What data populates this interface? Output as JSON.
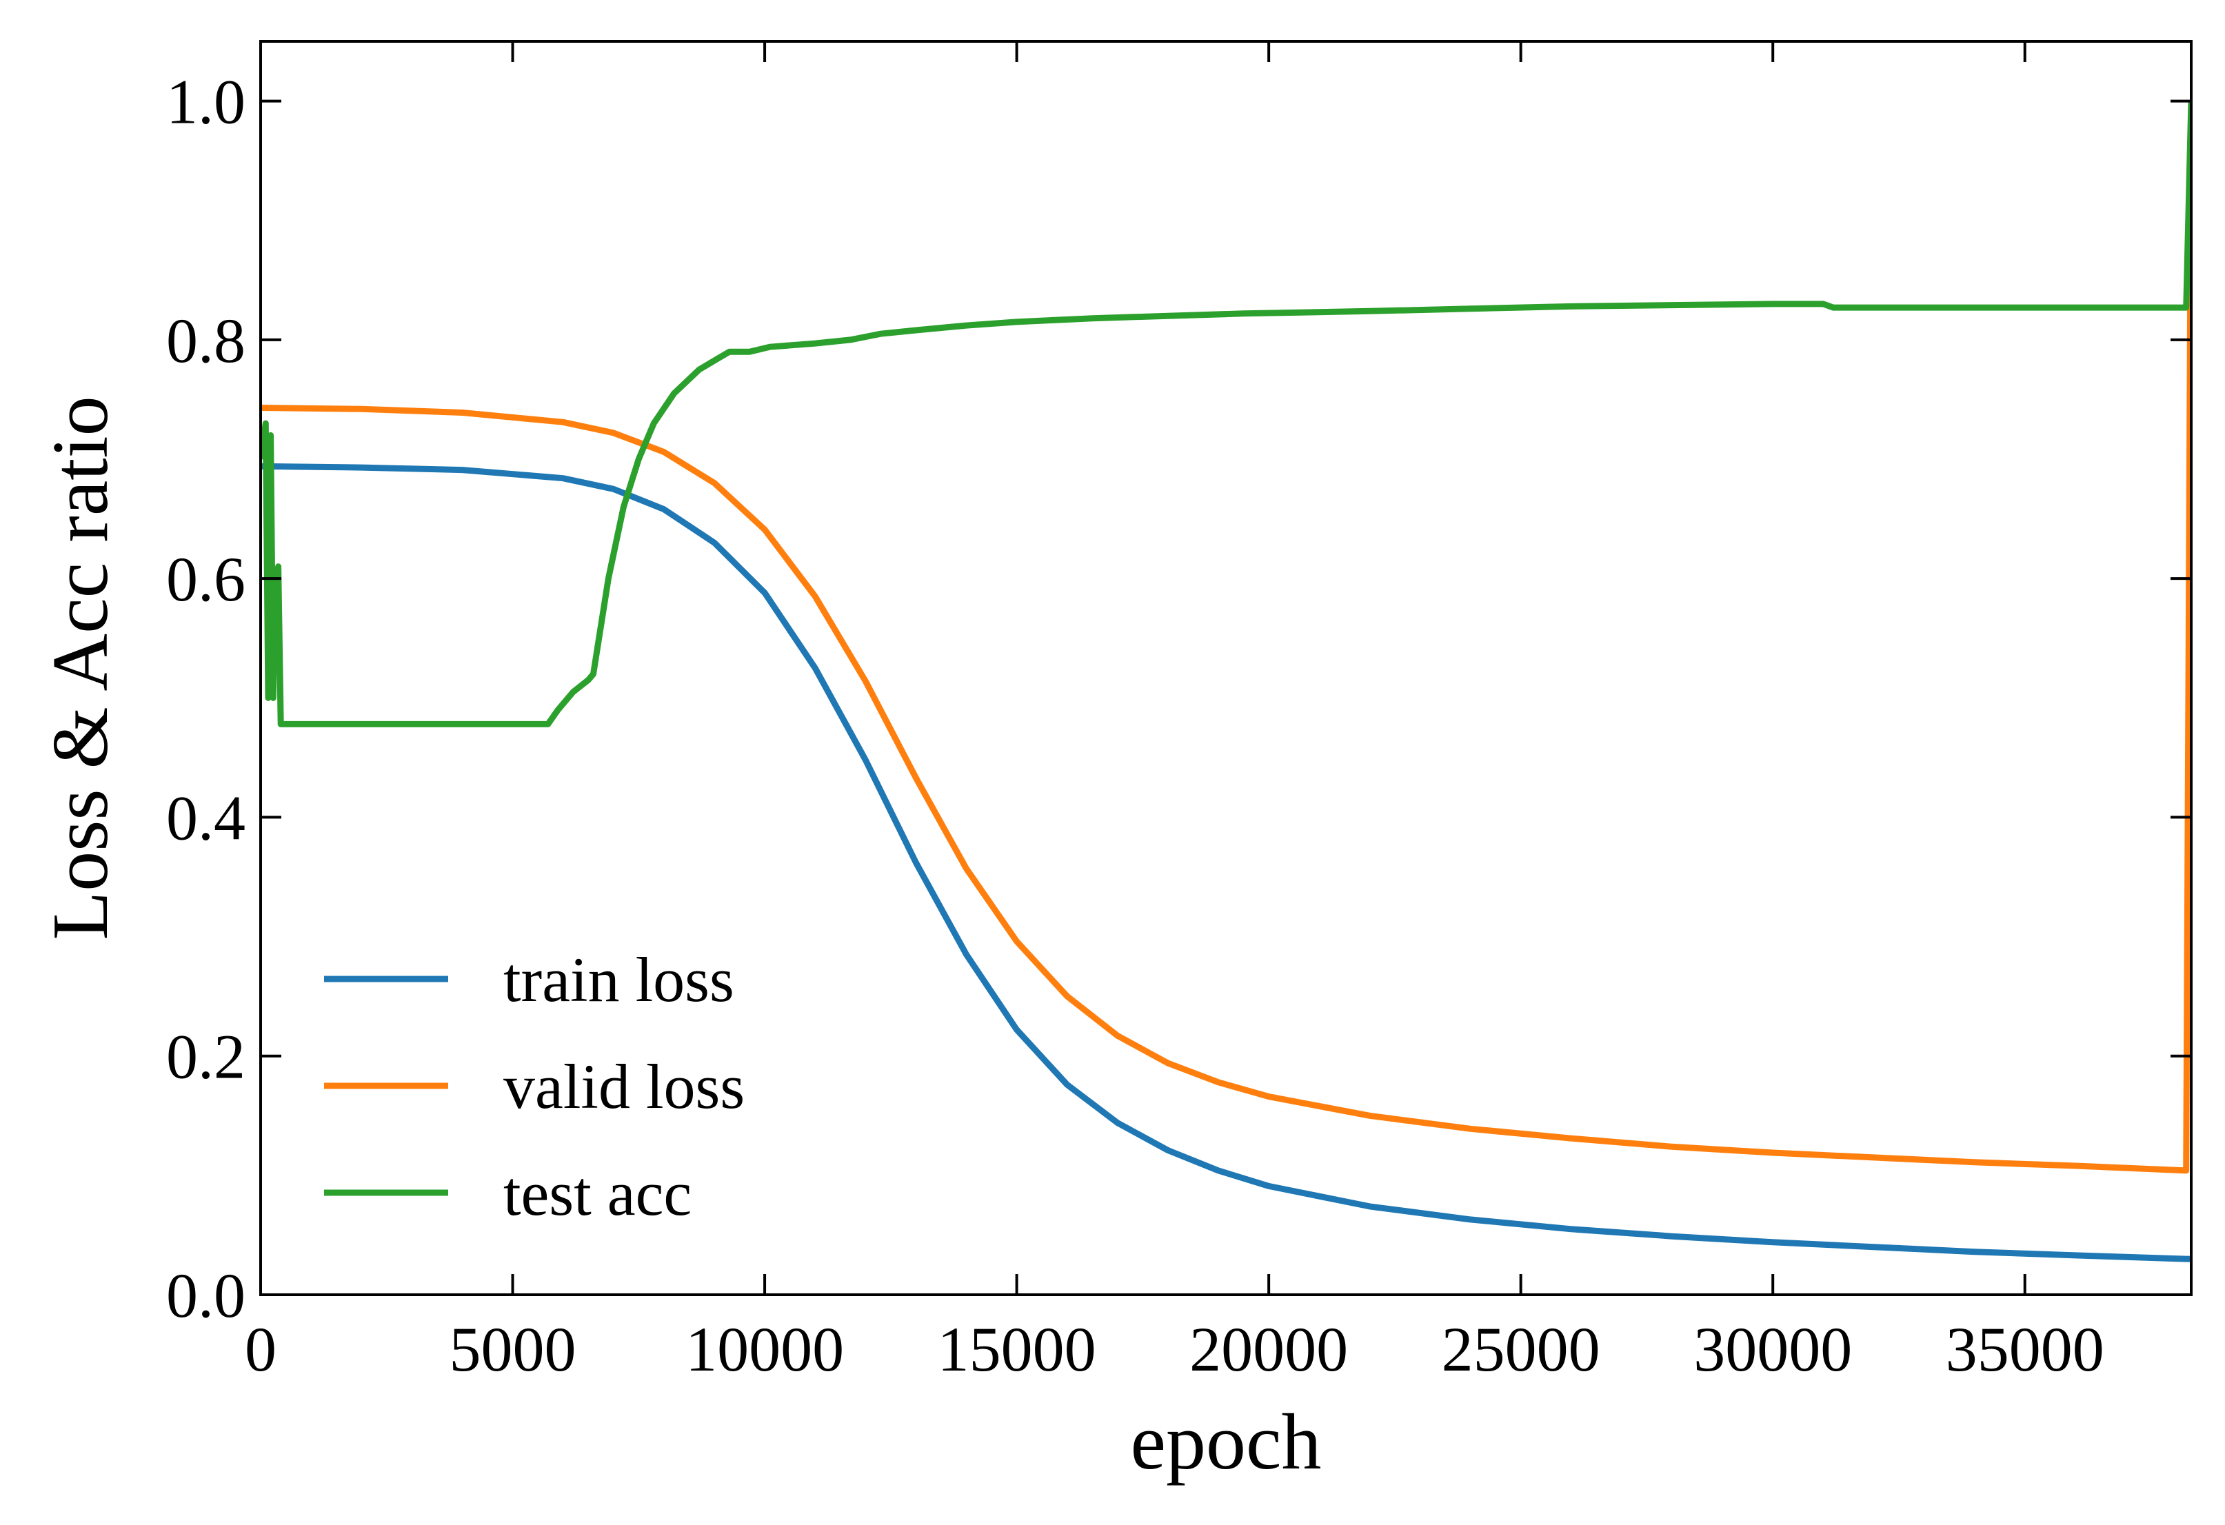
{
  "chart_data": {
    "type": "line",
    "title": "",
    "xlabel": "epoch",
    "ylabel": "Loss & Acc ratio",
    "xlim": [
      0,
      38300
    ],
    "ylim": [
      0.0,
      1.05
    ],
    "xticks": [
      0,
      5000,
      10000,
      15000,
      20000,
      25000,
      30000,
      35000
    ],
    "xtick_labels": [
      "0",
      "5000",
      "10000",
      "15000",
      "20000",
      "25000",
      "30000",
      "35000"
    ],
    "yticks": [
      0.0,
      0.2,
      0.4,
      0.6,
      0.8,
      1.0
    ],
    "ytick_labels": [
      "0.0",
      "0.2",
      "0.4",
      "0.6",
      "0.8",
      "1.0"
    ],
    "grid": false,
    "legend_position": "lower-left",
    "series": [
      {
        "name": "train loss",
        "color": "#1f77b4",
        "x": [
          0,
          2000,
          4000,
          6000,
          7000,
          8000,
          9000,
          10000,
          11000,
          12000,
          13000,
          14000,
          15000,
          16000,
          17000,
          18000,
          19000,
          20000,
          22000,
          24000,
          26000,
          28000,
          30000,
          32000,
          34000,
          36000,
          38200,
          38300
        ],
        "y": [
          0.694,
          0.693,
          0.691,
          0.684,
          0.675,
          0.658,
          0.63,
          0.588,
          0.525,
          0.448,
          0.362,
          0.285,
          0.222,
          0.176,
          0.144,
          0.121,
          0.104,
          0.091,
          0.074,
          0.063,
          0.055,
          0.049,
          0.044,
          0.04,
          0.036,
          0.033,
          0.03,
          0.03
        ]
      },
      {
        "name": "valid loss",
        "color": "#ff7f0e",
        "x": [
          0,
          2000,
          4000,
          6000,
          7000,
          8000,
          9000,
          10000,
          11000,
          12000,
          13000,
          14000,
          15000,
          16000,
          17000,
          18000,
          19000,
          20000,
          22000,
          24000,
          26000,
          28000,
          30000,
          32000,
          34000,
          36000,
          38200,
          38300
        ],
        "y": [
          0.743,
          0.742,
          0.739,
          0.731,
          0.722,
          0.706,
          0.68,
          0.641,
          0.585,
          0.514,
          0.433,
          0.357,
          0.296,
          0.25,
          0.217,
          0.194,
          0.178,
          0.166,
          0.15,
          0.139,
          0.131,
          0.124,
          0.119,
          0.115,
          0.111,
          0.108,
          0.104,
          1.0
        ]
      },
      {
        "name": "test acc",
        "color": "#2ca02c",
        "x": [
          0,
          100,
          150,
          200,
          250,
          300,
          350,
          400,
          450,
          500,
          5700,
          5900,
          6200,
          6500,
          6600,
          6900,
          7200,
          7500,
          7800,
          8200,
          8700,
          9100,
          9300,
          9700,
          10100,
          11000,
          11700,
          12300,
          13000,
          14000,
          15000,
          16500,
          18000,
          19500,
          22000,
          24000,
          26000,
          28000,
          30000,
          31000,
          31200,
          34000,
          38200,
          38300
        ],
        "y": [
          0.7,
          0.73,
          0.5,
          0.72,
          0.5,
          0.6,
          0.61,
          0.478,
          0.478,
          0.478,
          0.478,
          0.49,
          0.505,
          0.515,
          0.52,
          0.6,
          0.66,
          0.7,
          0.73,
          0.755,
          0.775,
          0.785,
          0.79,
          0.79,
          0.794,
          0.797,
          0.8,
          0.805,
          0.808,
          0.812,
          0.815,
          0.818,
          0.82,
          0.822,
          0.824,
          0.826,
          0.828,
          0.829,
          0.83,
          0.83,
          0.827,
          0.827,
          0.827,
          1.0
        ]
      }
    ]
  }
}
